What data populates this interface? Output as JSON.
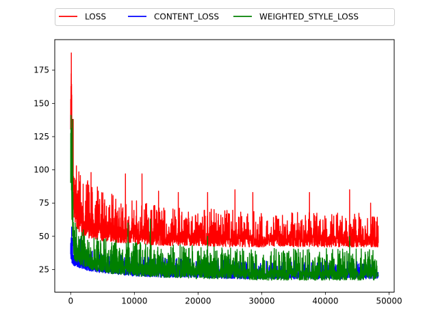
{
  "chart_data": {
    "type": "line",
    "title": "",
    "xlabel": "",
    "ylabel": "",
    "xlim": [
      -2500,
      50800
    ],
    "ylim": [
      8,
      198
    ],
    "x_ticks": [
      0,
      10000,
      20000,
      30000,
      40000,
      50000
    ],
    "x_tick_labels": [
      "0",
      "10000",
      "20000",
      "30000",
      "40000",
      "50000"
    ],
    "y_ticks": [
      25,
      50,
      75,
      100,
      125,
      150,
      175
    ],
    "y_tick_labels": [
      "25",
      "50",
      "75",
      "100",
      "125",
      "150",
      "175"
    ],
    "grid": false,
    "legend_position": "top-center",
    "x_max": 48300,
    "series": [
      {
        "name": "LOSS",
        "color": "#ff0000",
        "envelope": {
          "x": [
            0,
            80,
            200,
            500,
            1000,
            2000,
            4000,
            6000,
            8000,
            10000,
            15000,
            20000,
            25000,
            30000,
            35000,
            40000,
            45000,
            48300
          ],
          "low": [
            130,
            150,
            105,
            62,
            55,
            50,
            47,
            46,
            45,
            44,
            43,
            43,
            42,
            42,
            42,
            42,
            42,
            42
          ],
          "high": [
            188,
            187,
            145,
            102,
            100,
            95,
            88,
            83,
            79,
            77,
            73,
            71,
            70,
            69,
            69,
            68,
            68,
            66
          ]
        },
        "spikes": [
          [
            100,
            188
          ],
          [
            400,
            138
          ],
          [
            900,
            103
          ],
          [
            3200,
            98
          ],
          [
            8600,
            97
          ],
          [
            11200,
            97
          ],
          [
            13800,
            84
          ],
          [
            16900,
            83
          ],
          [
            21500,
            83
          ],
          [
            25800,
            85
          ],
          [
            28600,
            83
          ],
          [
            37500,
            83
          ],
          [
            43800,
            85
          ],
          [
            47100,
            75
          ]
        ]
      },
      {
        "name": "CONTENT_LOSS",
        "color": "#0000ff",
        "envelope": {
          "x": [
            0,
            80,
            200,
            500,
            1000,
            2000,
            4000,
            6000,
            8000,
            10000,
            15000,
            20000,
            25000,
            30000,
            35000,
            40000,
            45000,
            48300
          ],
          "low": [
            35,
            32,
            29,
            28,
            27,
            25,
            23,
            22,
            21,
            20,
            19,
            19,
            18,
            18,
            18,
            18,
            18,
            18
          ],
          "high": [
            50,
            57,
            52,
            48,
            45,
            42,
            39,
            37,
            36,
            35,
            34,
            33,
            33,
            32,
            32,
            32,
            32,
            31
          ]
        },
        "spikes": [
          [
            150,
            57
          ],
          [
            600,
            50
          ],
          [
            1500,
            48
          ]
        ]
      },
      {
        "name": "WEIGHTED_STYLE_LOSS",
        "color": "#008000",
        "envelope": {
          "x": [
            0,
            80,
            200,
            500,
            1000,
            2000,
            4000,
            6000,
            8000,
            10000,
            15000,
            20000,
            25000,
            30000,
            35000,
            40000,
            45000,
            48300
          ],
          "low": [
            80,
            100,
            55,
            32,
            30,
            27,
            24,
            22,
            21,
            20,
            19,
            18,
            18,
            17,
            17,
            17,
            17,
            17
          ],
          "high": [
            130,
            141,
            120,
            62,
            58,
            55,
            50,
            48,
            47,
            46,
            44,
            43,
            42,
            41,
            41,
            41,
            41,
            40
          ]
        },
        "spikes": [
          [
            50,
            141
          ],
          [
            300,
            138
          ],
          [
            700,
            60
          ],
          [
            9000,
            60
          ],
          [
            12500,
            63
          ],
          [
            21500,
            50
          ],
          [
            43800,
            50
          ]
        ]
      }
    ]
  }
}
